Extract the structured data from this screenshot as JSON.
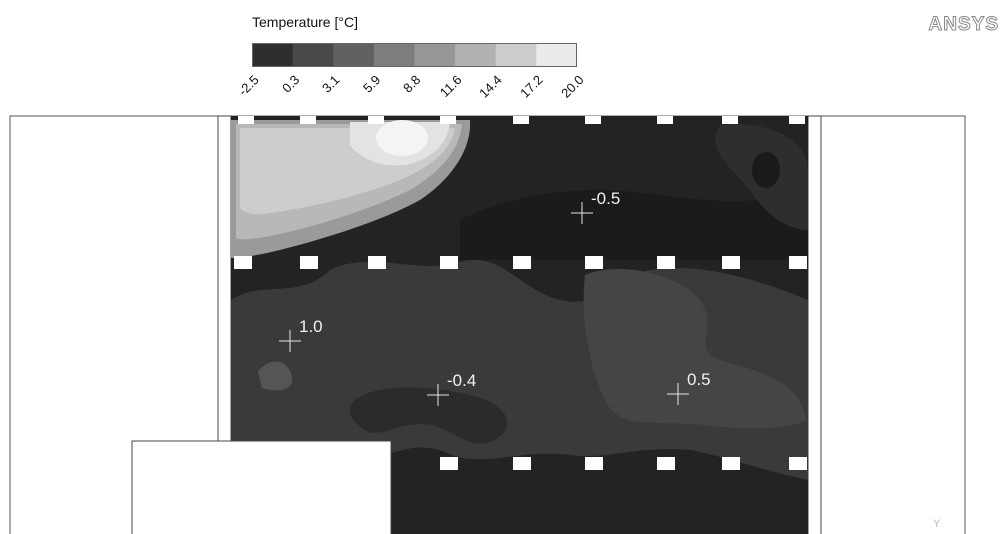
{
  "chart_data": {
    "type": "heatmap",
    "title": "Temperature [°C]",
    "colorbar": {
      "ticks": [
        "-2.5",
        "0.3",
        "3.1",
        "5.9",
        "8.8",
        "11.6",
        "14.4",
        "17.2",
        "20.0"
      ],
      "colors": [
        "#181818",
        "#2e2e2e",
        "#484848",
        "#616161",
        "#7d7d7d",
        "#979797",
        "#b1b1b1",
        "#cdcdcd",
        "#ebebeb"
      ]
    },
    "probes": [
      {
        "label": "-0.5",
        "value": -0.5
      },
      {
        "label": "1.0",
        "value": 1.0
      },
      {
        "label": "-0.4",
        "value": -0.4
      },
      {
        "label": "0.5",
        "value": 0.5
      }
    ],
    "brand": "ANSYS",
    "axis_letter": "Y"
  }
}
